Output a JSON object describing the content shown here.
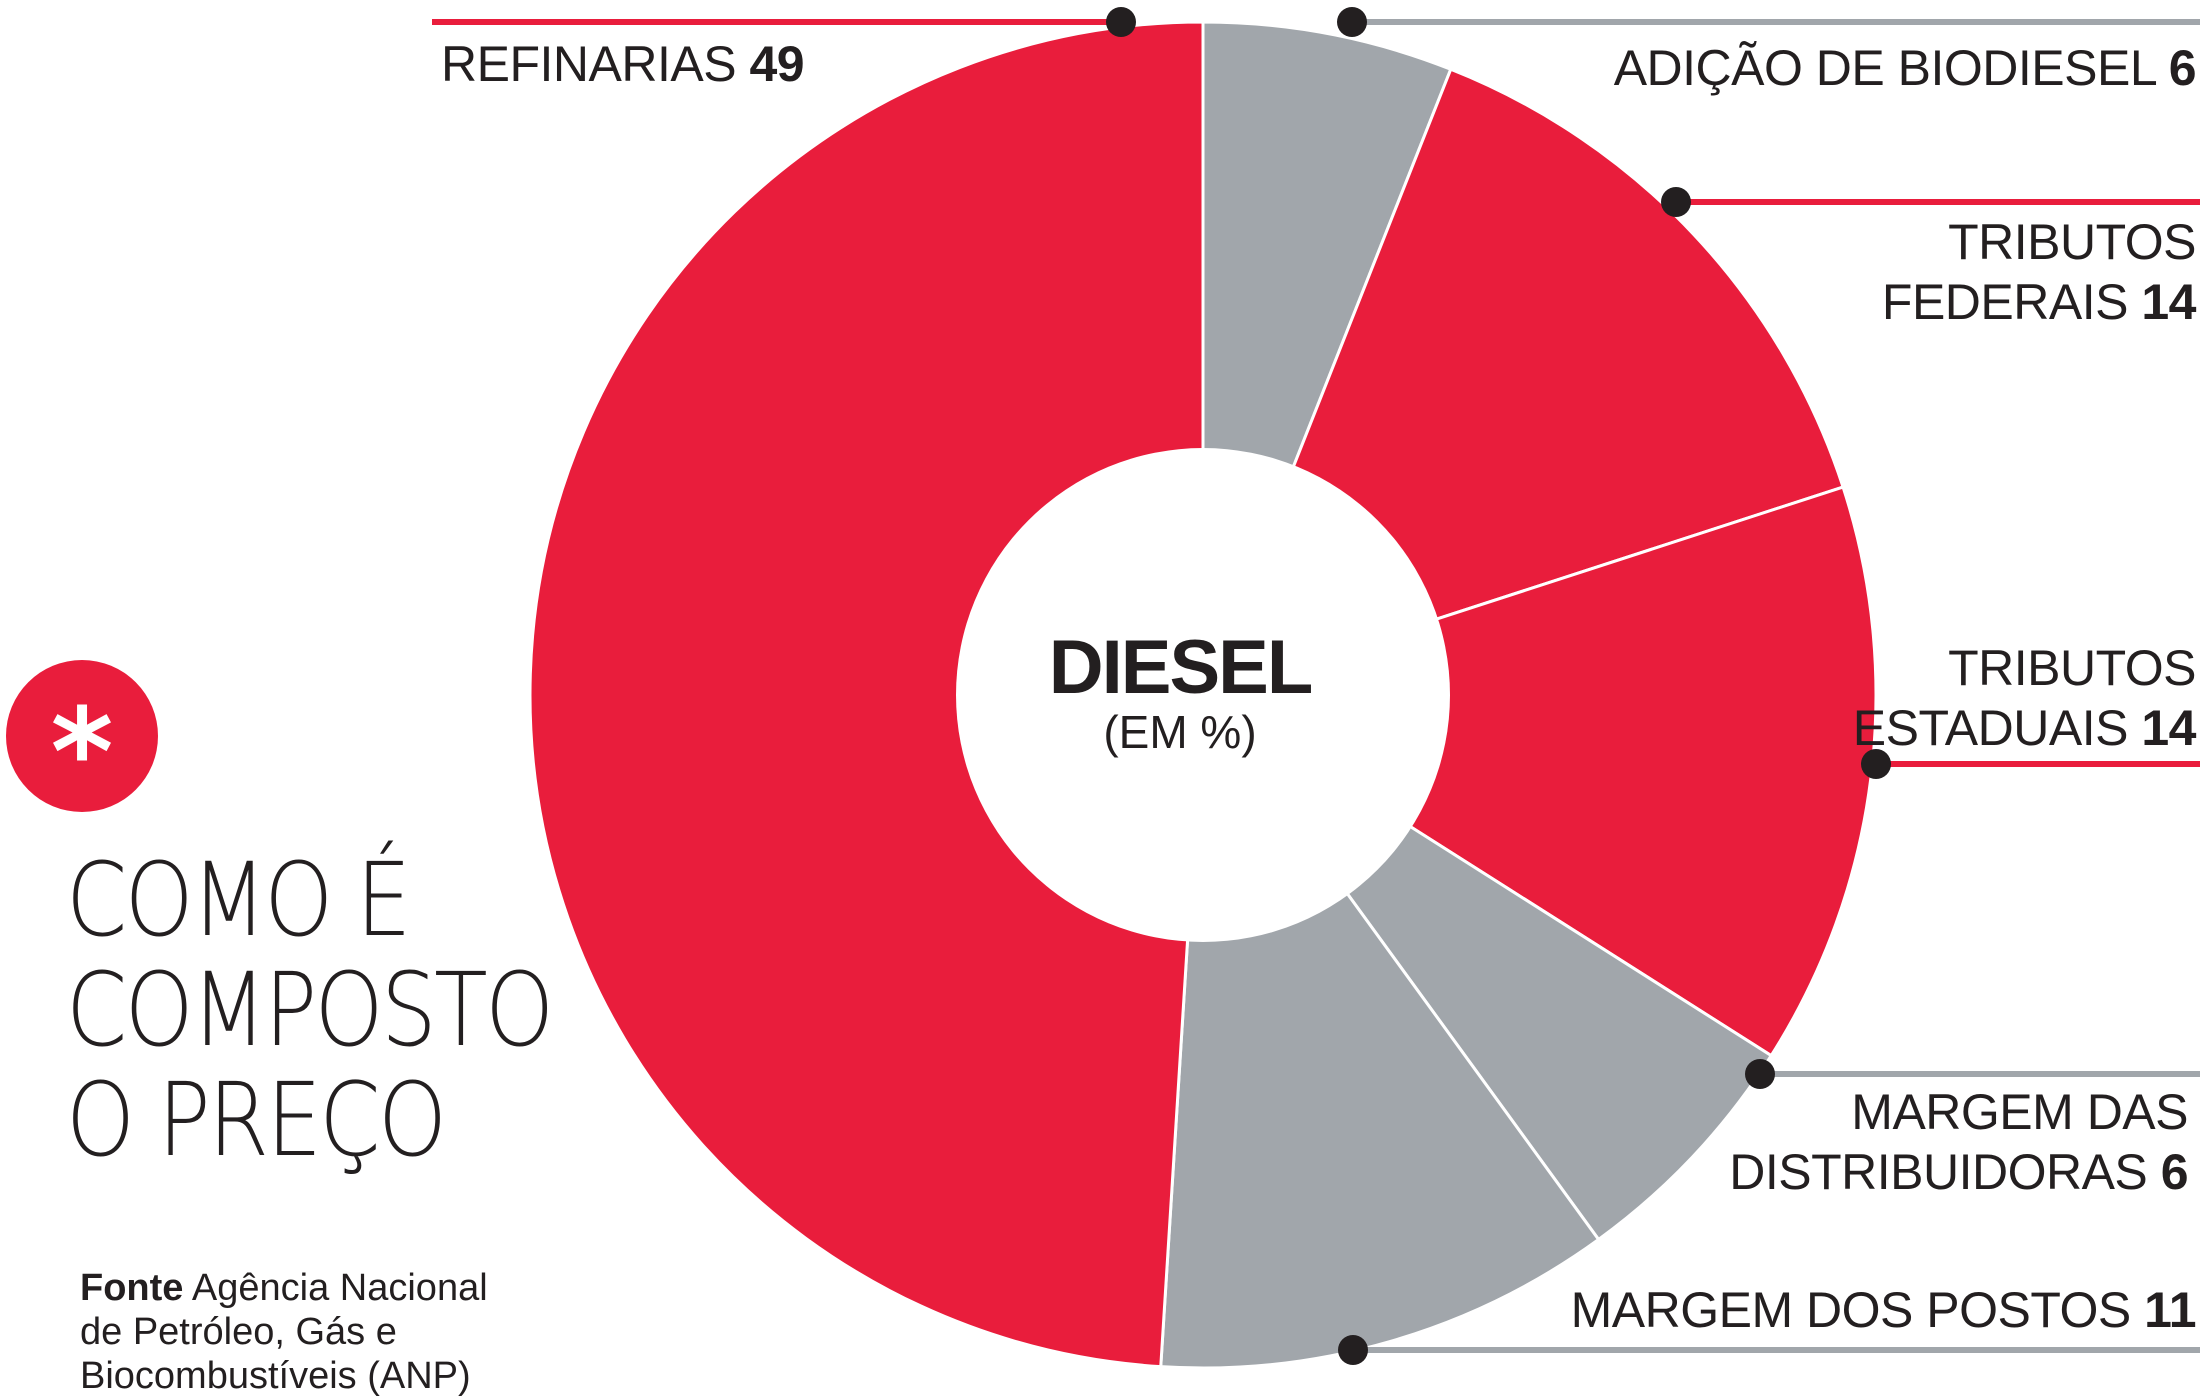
{
  "chart_data": {
    "type": "pie",
    "title": "DIESEL",
    "subtitle": "(EM %)",
    "slices": [
      {
        "label": "ADIÇÃO DE BIODIESEL",
        "value": 6,
        "color": "#a1a6ab"
      },
      {
        "label": "TRIBUTOS FEDERAIS",
        "value": 14,
        "color": "#e91d3c"
      },
      {
        "label": "TRIBUTOS ESTADUAIS",
        "value": 14,
        "color": "#e91d3c"
      },
      {
        "label": "MARGEM DAS DISTRIBUIDORAS",
        "value": 6,
        "color": "#a1a6ab"
      },
      {
        "label": "MARGEM DOS POSTOS",
        "value": 11,
        "color": "#a1a6ab"
      },
      {
        "label": "REFINARIAS",
        "value": 49,
        "color": "#e91d3c"
      }
    ]
  },
  "labels": {
    "refinarias": {
      "text": "REFINARIAS",
      "value": "49"
    },
    "biodiesel": {
      "text": "ADIÇÃO DE BIODIESEL",
      "value": "6"
    },
    "federais": {
      "line1": "TRIBUTOS",
      "line2": "FEDERAIS",
      "value": "14"
    },
    "estaduais": {
      "line1": "TRIBUTOS",
      "line2": "ESTADUAIS",
      "value": "14"
    },
    "distribuidoras": {
      "line1": "MARGEM DAS",
      "line2": "DISTRIBUIDORAS",
      "value": "6"
    },
    "postos": {
      "text": "MARGEM DOS POSTOS",
      "value": "11"
    }
  },
  "headline": {
    "badge": "*",
    "line1": "COMO É",
    "line2": "COMPOSTO",
    "line3": "O PREÇO"
  },
  "source": {
    "label": "Fonte",
    "text": "Agência Nacional de Petróleo, Gás e Biocombustíveis (ANP)"
  },
  "colors": {
    "red": "#e91d3c",
    "gray": "#a1a6ab",
    "text": "#231f20"
  }
}
